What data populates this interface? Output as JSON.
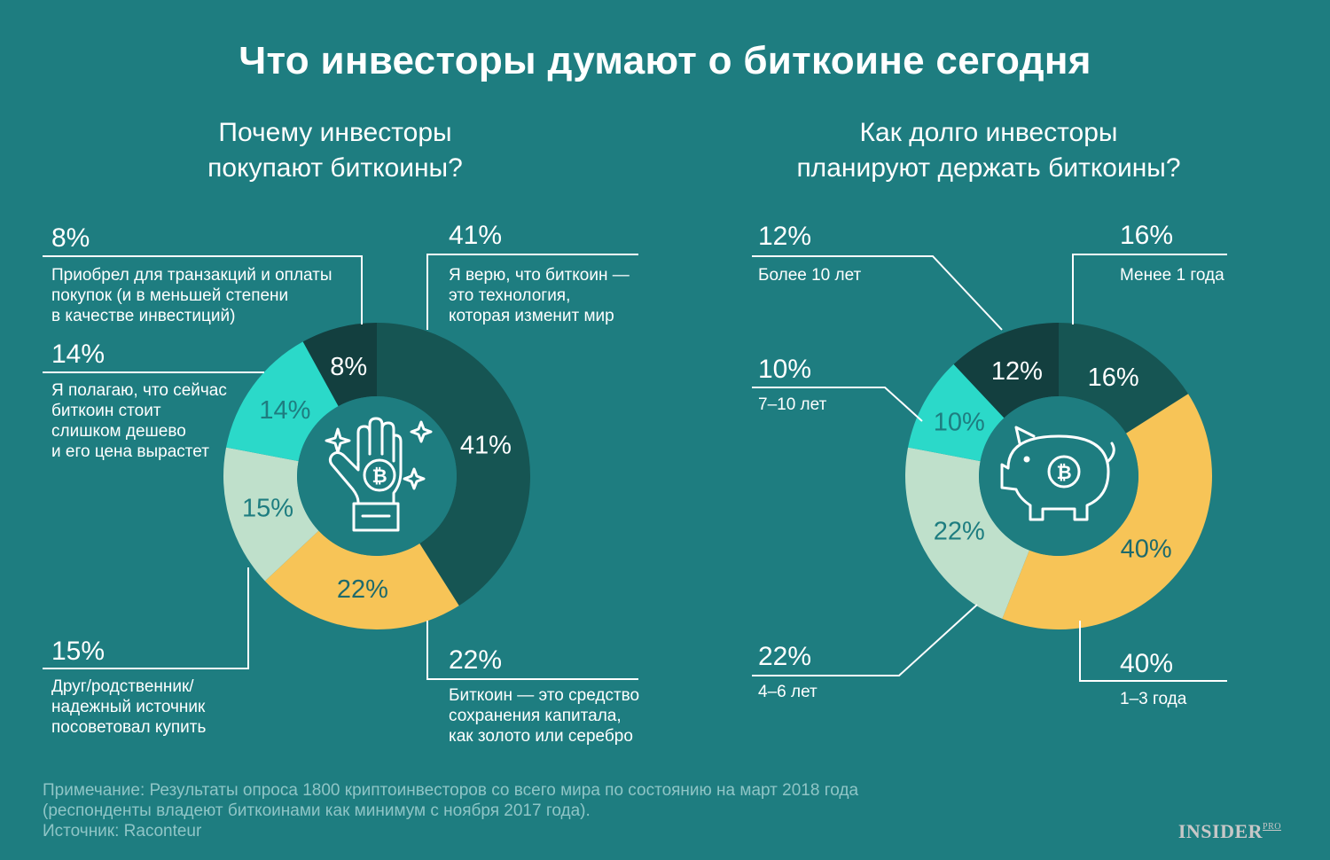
{
  "title": "Что инвесторы думают о биткоине сегодня",
  "left_chart": {
    "subtitle_lines": [
      "Почему инвесторы",
      "покупают биткоины?"
    ]
  },
  "right_chart": {
    "subtitle_lines": [
      "Как долго инвесторы",
      "планируют держать биткоины?"
    ]
  },
  "colors": {
    "background": "#1e7d80",
    "darkest": "#133f3f",
    "dark_teal": "#165553",
    "yellow": "#f7c457",
    "mint": "#bfe0cb",
    "cyan": "#2bd9c9",
    "inner": "#1e7d80"
  },
  "icons": {
    "left_center": "bitcoin-hand-icon",
    "right_center": "bitcoin-piggy-bank-icon",
    "sparkle": "sparkle-icon"
  },
  "chart_data": [
    {
      "type": "pie",
      "subtype": "donut",
      "title": "Почему инвесторы покупают биткоины?",
      "slices": [
        {
          "value": 41,
          "label": "41%",
          "color": "#165553",
          "desc": "Я верю, что биткоин — это технология, которая изменит мир",
          "desc_lines": [
            "Я верю, что биткоин —",
            "это технология,",
            "которая изменит мир"
          ]
        },
        {
          "value": 22,
          "label": "22%",
          "color": "#f7c457",
          "desc": "Биткоин — это средство сохранения капитала, как золото или серебро",
          "desc_lines": [
            "Биткоин — это средство",
            "сохранения капитала,",
            "как золото или серебро"
          ]
        },
        {
          "value": 15,
          "label": "15%",
          "color": "#bfe0cb",
          "desc": "Друг/родственник/ надежный источник посоветовал купить",
          "desc_lines": [
            "Друг/родственник/",
            "надежный источник",
            "посоветовал купить"
          ]
        },
        {
          "value": 14,
          "label": "14%",
          "color": "#2bd9c9",
          "desc": "Я полагаю, что сейчас биткоин стоит слишком дешево и его цена вырастет",
          "desc_lines": [
            "Я полагаю, что сейчас",
            "биткоин стоит",
            "слишком дешево",
            "и его цена вырастет"
          ]
        },
        {
          "value": 8,
          "label": "8%",
          "color": "#133f3f",
          "desc": "Приобрел для транзакций и оплаты покупок (и в меньшей степени в качестве инвестиций)",
          "desc_lines": [
            "Приобрел для транзакций и оплаты",
            "покупок (и в меньшей степени",
            "в качестве инвестиций)"
          ]
        }
      ]
    },
    {
      "type": "pie",
      "subtype": "donut",
      "title": "Как долго инвесторы планируют держать биткоины?",
      "slices": [
        {
          "value": 16,
          "label": "16%",
          "color": "#165553",
          "desc": "Менее 1 года",
          "desc_lines": [
            "Менее 1 года"
          ]
        },
        {
          "value": 40,
          "label": "40%",
          "color": "#f7c457",
          "desc": "1–3 года",
          "desc_lines": [
            "1–3 года"
          ]
        },
        {
          "value": 22,
          "label": "22%",
          "color": "#bfe0cb",
          "desc": "4–6 лет",
          "desc_lines": [
            "4–6 лет"
          ]
        },
        {
          "value": 10,
          "label": "10%",
          "color": "#2bd9c9",
          "desc": "7–10 лет",
          "desc_lines": [
            "7–10 лет"
          ]
        },
        {
          "value": 12,
          "label": "12%",
          "color": "#133f3f",
          "desc": "Более 10 лет",
          "desc_lines": [
            "Более 10 лет"
          ]
        }
      ]
    }
  ],
  "note": {
    "lines": [
      "Примечание: Результаты опроса 1800 криптоинвесторов со всего мира по состоянию на март 2018 года",
      "(респонденты владеют биткоинами как минимум с ноября 2017 года).",
      "Источник: Raconteur"
    ]
  },
  "brand": {
    "name": "INSIDER",
    "suffix": "PRO"
  }
}
